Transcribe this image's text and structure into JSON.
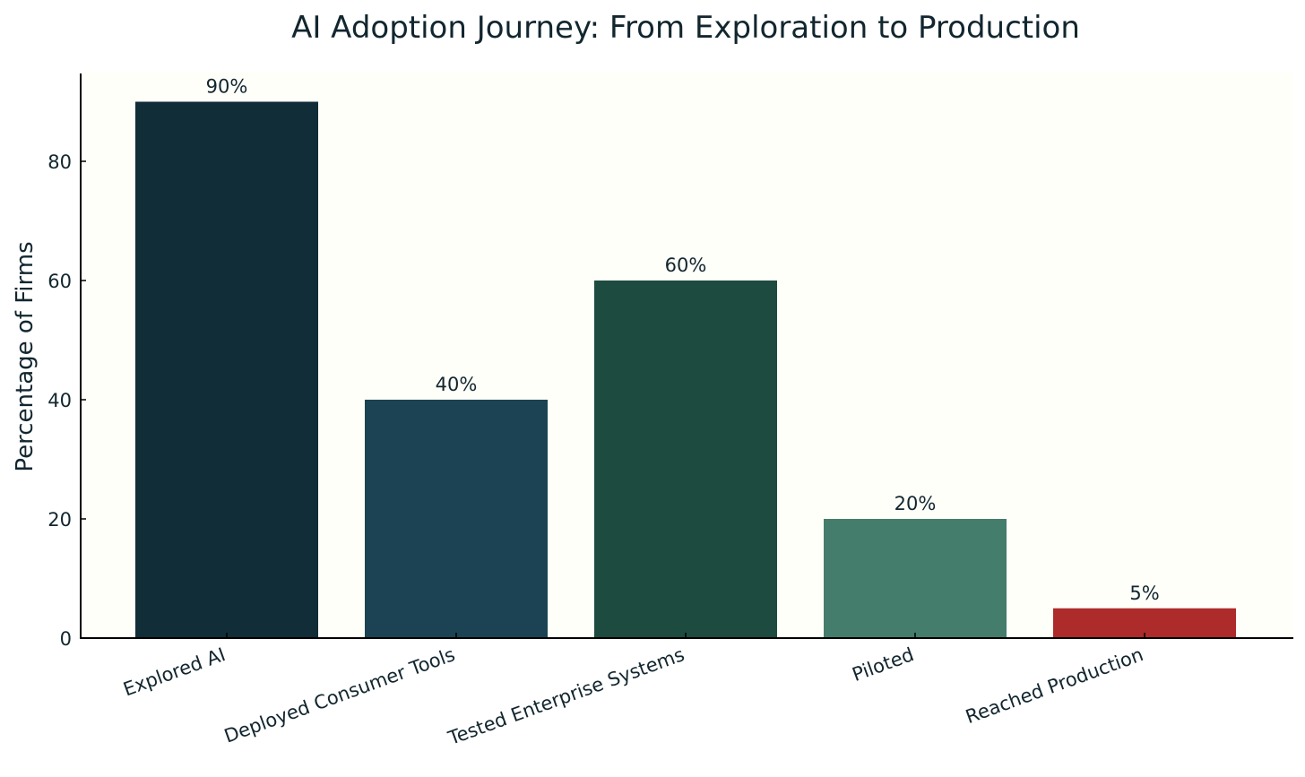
{
  "chart_data": {
    "type": "bar",
    "title": "AI Adoption Journey: From Exploration to Production",
    "xlabel": "",
    "ylabel": "Percentage of Firms",
    "ylim": [
      0,
      95
    ],
    "yticks": [
      0,
      20,
      40,
      60,
      80
    ],
    "grid": false,
    "categories": [
      "Explored AI",
      "Deployed Consumer Tools",
      "Tested Enterprise Systems",
      "Piloted",
      "Reached Production"
    ],
    "values": [
      90,
      40,
      60,
      20,
      5
    ],
    "value_labels": [
      "90%",
      "40%",
      "60%",
      "20%",
      "5%"
    ],
    "colors": [
      "#112d37",
      "#1b4353",
      "#1e4b3f",
      "#447d6c",
      "#ae2b2b"
    ],
    "background_color": "#fffff9",
    "axis_color": "#000000"
  }
}
